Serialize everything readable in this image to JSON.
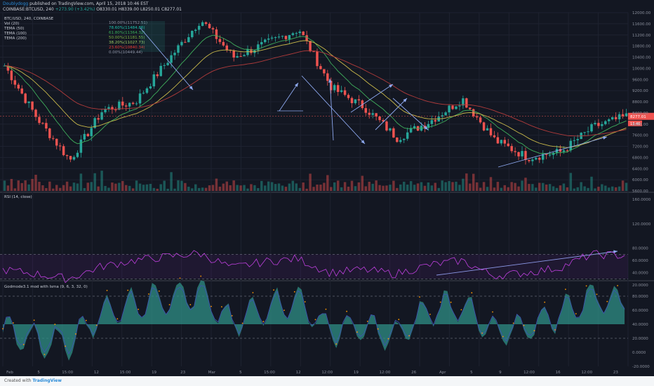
{
  "header": {
    "author": "Doublydogg",
    "published": "published on TradingView.com, April 15, 2018 10:46 EST",
    "symbol": "COINBASE:BTCUSD, 240",
    "ohlc": "O8330.01  H8339.00  L8250.01  C8277.01",
    "change": "+273.90 (+3.42%)"
  },
  "legend_price": [
    "BTC/USD, 240, COINBASE",
    "Vol (20)",
    "TEMA (50)",
    "TEMA (100)",
    "TEMA (200)"
  ],
  "legend_rsi": "RSI (14, close)",
  "legend_osc": "Godmode3.1 mod with lsma (9, 6, 3, 32, 0)",
  "fib_labels": [
    {
      "text": "100.00%(11752.51)",
      "color": "#8f96a8"
    },
    {
      "text": "78.60%(11484.86)",
      "color": "#1dc3ae"
    },
    {
      "text": "61.80%(11364.32)",
      "color": "#3ab05b"
    },
    {
      "text": "50.00%(11181.55)",
      "color": "#7cb342"
    },
    {
      "text": "38.20%(11027.73)",
      "color": "#9ccc65"
    },
    {
      "text": "23.60%(10840.34)",
      "color": "#e53935"
    },
    {
      "text": "0.00%(10449.44)",
      "color": "#8f96a8"
    }
  ],
  "price_axis": [
    "12000.00",
    "11600.00",
    "11200.00",
    "10800.00",
    "10400.00",
    "10000.00",
    "9600.00",
    "9200.00",
    "8800.00",
    "8400.00",
    "8000.00",
    "7600.00",
    "7200.00",
    "6800.00",
    "6400.00",
    "6000.00",
    "5600.00"
  ],
  "last_price_tag": "8277.01",
  "last_price_sub": "13.46",
  "rsi_axis": [
    "160.0000",
    "120.0000",
    "80.0000",
    "60.0000",
    "40.0000",
    "20.0000"
  ],
  "osc_axis": [
    "80.0000",
    "60.0000",
    "40.0000",
    "20.0000",
    "0.0000",
    "-20.0000"
  ],
  "time_axis": [
    "Feb",
    "5",
    "15:00",
    "12",
    "15:00",
    "19",
    "23",
    "Mar",
    "5",
    "15:00",
    "12",
    "12:00",
    "19",
    "12:00",
    "26",
    "Apr",
    "5",
    "9",
    "12:00",
    "16",
    "12:00",
    "23"
  ],
  "footer": {
    "created": "Created with",
    "brand": "TradingView"
  },
  "colors": {
    "up": "#26a69a",
    "down": "#ef5350",
    "rsi": "#c040e0",
    "osc_fill": "#2f8f86",
    "tema50": "#3fae5c",
    "tema100": "#c8b84a",
    "tema200": "#b13b3b",
    "annotation": "#8ea9f0"
  },
  "chart_data": [
    {
      "type": "line",
      "title": "BTC/USD, 240, COINBASE",
      "x": [
        "Feb",
        "5",
        "15:00",
        "12",
        "15:00",
        "19",
        "23",
        "Mar",
        "5",
        "15:00",
        "12",
        "12:00",
        "19",
        "12:00",
        "26",
        "Apr",
        "5",
        "9",
        "12:00",
        "16"
      ],
      "series": [
        {
          "name": "BTC/USD",
          "values": [
            10100,
            8200,
            6700,
            8500,
            8800,
            10300,
            11750,
            10400,
            10900,
            11400,
            9300,
            8600,
            7500,
            8100,
            8900,
            7400,
            6800,
            7000,
            7900,
            8277
          ]
        }
      ],
      "ylim": [
        5600,
        12000
      ]
    },
    {
      "type": "line",
      "title": "RSI (14, close)",
      "ylim": [
        20,
        160
      ],
      "levels": [
        70,
        30
      ],
      "series": [
        {
          "name": "RSI",
          "values": [
            45,
            38,
            30,
            50,
            60,
            66,
            72,
            48,
            58,
            63,
            40,
            45,
            38,
            52,
            60,
            35,
            40,
            48,
            70,
            68
          ]
        }
      ]
    },
    {
      "type": "area",
      "title": "Godmode3.1 mod with lsma (9, 6, 3, 32, 0)",
      "ylim": [
        -20,
        100
      ],
      "series": [
        {
          "name": "Godmode",
          "values": [
            30,
            15,
            10,
            55,
            70,
            80,
            85,
            40,
            65,
            75,
            30,
            35,
            20,
            60,
            70,
            25,
            35,
            55,
            80,
            75
          ]
        }
      ]
    }
  ]
}
